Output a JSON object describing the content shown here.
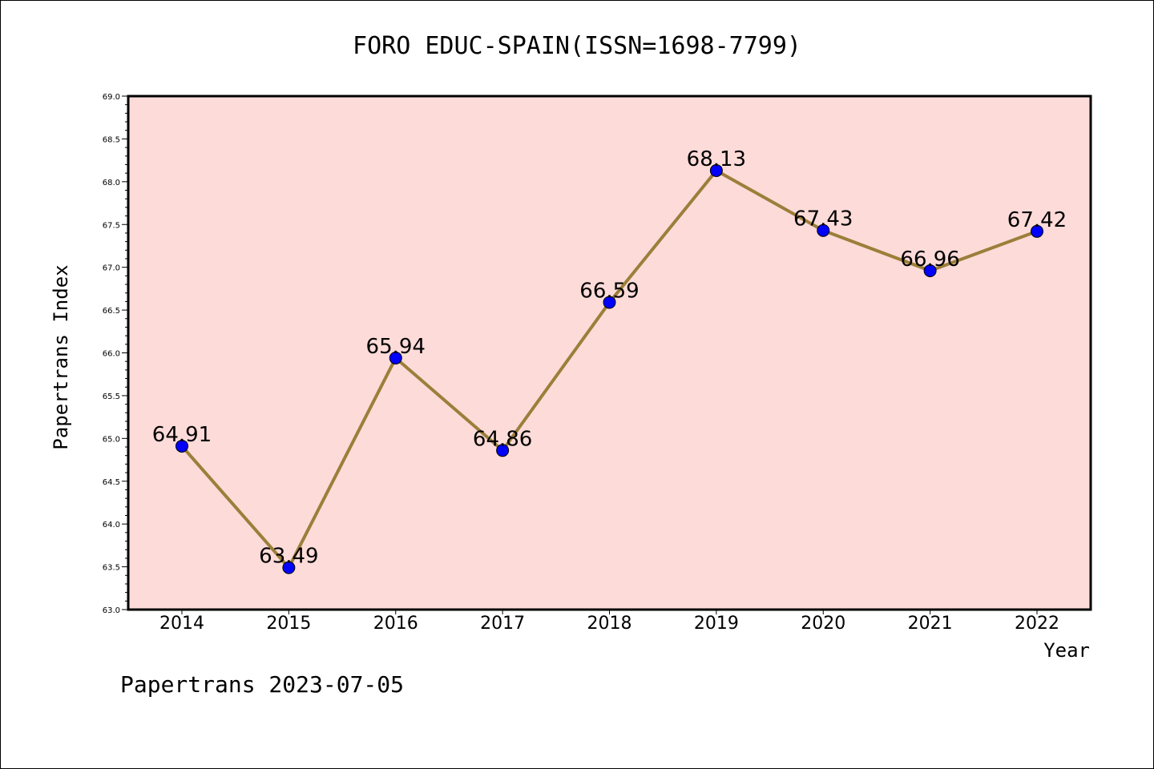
{
  "chart_data": {
    "type": "line",
    "title": "FORO EDUC-SPAIN(ISSN=1698-7799)",
    "xlabel": "Year",
    "ylabel": "Papertrans Index",
    "x": [
      "2014",
      "2015",
      "2016",
      "2017",
      "2018",
      "2019",
      "2020",
      "2021",
      "2022"
    ],
    "values": [
      64.91,
      63.49,
      65.94,
      64.86,
      66.59,
      68.13,
      67.43,
      66.96,
      67.42
    ],
    "data_labels": [
      "64.91",
      "63.49",
      "65.94",
      "64.86",
      "66.59",
      "68.13",
      "67.43",
      "66.96",
      "67.42"
    ],
    "ylim": [
      63.0,
      69.0
    ],
    "y_ticks": [
      "63.0",
      "63.5",
      "64.0",
      "64.5",
      "65.0",
      "65.5",
      "66.0",
      "66.5",
      "67.0",
      "67.5",
      "68.0",
      "68.5",
      "69.0"
    ],
    "grid": false,
    "colors": {
      "plot_background": "#fddbd9",
      "line": "#9b7f3a",
      "marker": "#0000ff"
    }
  },
  "footer": "Papertrans 2023-07-05"
}
